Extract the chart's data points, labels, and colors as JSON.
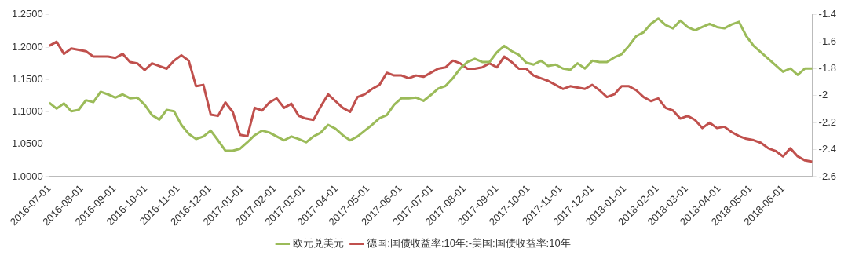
{
  "chart_data": {
    "type": "line",
    "x": [
      "2016-07-01",
      "2016-07-08",
      "2016-07-15",
      "2016-07-22",
      "2016-07-29",
      "2016-08-05",
      "2016-08-12",
      "2016-08-19",
      "2016-08-26",
      "2016-09-02",
      "2016-09-09",
      "2016-09-16",
      "2016-09-23",
      "2016-09-30",
      "2016-10-07",
      "2016-10-14",
      "2016-10-21",
      "2016-10-28",
      "2016-11-04",
      "2016-11-11",
      "2016-11-18",
      "2016-11-25",
      "2016-12-02",
      "2016-12-09",
      "2016-12-16",
      "2016-12-23",
      "2016-12-30",
      "2017-01-06",
      "2017-01-13",
      "2017-01-20",
      "2017-01-27",
      "2017-02-03",
      "2017-02-10",
      "2017-02-17",
      "2017-02-24",
      "2017-03-03",
      "2017-03-10",
      "2017-03-17",
      "2017-03-24",
      "2017-03-31",
      "2017-04-07",
      "2017-04-14",
      "2017-04-21",
      "2017-04-28",
      "2017-05-05",
      "2017-05-12",
      "2017-05-19",
      "2017-05-26",
      "2017-06-02",
      "2017-06-09",
      "2017-06-16",
      "2017-06-23",
      "2017-06-30",
      "2017-07-07",
      "2017-07-14",
      "2017-07-21",
      "2017-07-28",
      "2017-08-04",
      "2017-08-11",
      "2017-08-18",
      "2017-08-25",
      "2017-09-01",
      "2017-09-08",
      "2017-09-15",
      "2017-09-22",
      "2017-09-29",
      "2017-10-06",
      "2017-10-13",
      "2017-10-20",
      "2017-10-27",
      "2017-11-03",
      "2017-11-10",
      "2017-11-17",
      "2017-11-24",
      "2017-12-01",
      "2017-12-08",
      "2017-12-15",
      "2017-12-22",
      "2017-12-29",
      "2018-01-05",
      "2018-01-12",
      "2018-01-19",
      "2018-01-26",
      "2018-02-02",
      "2018-02-09",
      "2018-02-16",
      "2018-02-23",
      "2018-03-02",
      "2018-03-09",
      "2018-03-16",
      "2018-03-23",
      "2018-03-30",
      "2018-04-06",
      "2018-04-13",
      "2018-04-20",
      "2018-04-27",
      "2018-05-04",
      "2018-05-11",
      "2018-05-18",
      "2018-05-25",
      "2018-06-01",
      "2018-06-08",
      "2018-06-15",
      "2018-06-22",
      "2018-06-29"
    ],
    "series": [
      {
        "name": "欧元兑美元",
        "color": "#9bbb59",
        "values": [
          1.114,
          1.105,
          1.113,
          1.101,
          1.103,
          1.118,
          1.115,
          1.131,
          1.127,
          1.122,
          1.127,
          1.121,
          1.122,
          1.111,
          1.095,
          1.088,
          1.103,
          1.101,
          1.08,
          1.066,
          1.058,
          1.062,
          1.071,
          1.056,
          1.04,
          1.04,
          1.043,
          1.053,
          1.064,
          1.071,
          1.068,
          1.062,
          1.056,
          1.062,
          1.058,
          1.053,
          1.062,
          1.068,
          1.08,
          1.074,
          1.064,
          1.056,
          1.062,
          1.071,
          1.08,
          1.09,
          1.095,
          1.111,
          1.121,
          1.121,
          1.122,
          1.117,
          1.126,
          1.136,
          1.14,
          1.152,
          1.167,
          1.177,
          1.182,
          1.177,
          1.177,
          1.192,
          1.202,
          1.194,
          1.188,
          1.176,
          1.173,
          1.179,
          1.171,
          1.173,
          1.167,
          1.165,
          1.175,
          1.167,
          1.179,
          1.177,
          1.177,
          1.184,
          1.189,
          1.202,
          1.217,
          1.223,
          1.236,
          1.244,
          1.234,
          1.229,
          1.241,
          1.231,
          1.226,
          1.231,
          1.236,
          1.231,
          1.229,
          1.235,
          1.239,
          1.217,
          1.202,
          1.192,
          1.182,
          1.172,
          1.162,
          1.167,
          1.157,
          1.167,
          1.167
        ]
      },
      {
        "name": "德国:国债收益率:10年:-美国:国债收益率:10年",
        "color": "#c0504d",
        "axis": "y2",
        "values": [
          -1.63,
          -1.6,
          -1.69,
          -1.65,
          -1.66,
          -1.67,
          -1.71,
          -1.71,
          -1.71,
          -1.72,
          -1.69,
          -1.75,
          -1.76,
          -1.81,
          -1.76,
          -1.78,
          -1.8,
          -1.74,
          -1.7,
          -1.74,
          -1.93,
          -1.92,
          -2.14,
          -2.15,
          -2.05,
          -2.12,
          -2.29,
          -2.3,
          -2.09,
          -2.11,
          -2.05,
          -2.02,
          -2.09,
          -2.06,
          -2.15,
          -2.17,
          -2.18,
          -2.08,
          -1.99,
          -2.04,
          -2.09,
          -2.12,
          -2.01,
          -1.99,
          -1.95,
          -1.92,
          -1.83,
          -1.85,
          -1.85,
          -1.87,
          -1.85,
          -1.86,
          -1.83,
          -1.8,
          -1.79,
          -1.74,
          -1.76,
          -1.8,
          -1.8,
          -1.79,
          -1.76,
          -1.79,
          -1.71,
          -1.75,
          -1.8,
          -1.8,
          -1.85,
          -1.87,
          -1.89,
          -1.92,
          -1.95,
          -1.93,
          -1.94,
          -1.95,
          -1.92,
          -1.96,
          -2.01,
          -1.99,
          -1.93,
          -1.93,
          -1.96,
          -2.01,
          -2.04,
          -2.02,
          -2.09,
          -2.11,
          -2.17,
          -2.15,
          -2.18,
          -2.24,
          -2.2,
          -2.24,
          -2.23,
          -2.27,
          -2.3,
          -2.32,
          -2.33,
          -2.35,
          -2.39,
          -2.41,
          -2.45,
          -2.39,
          -2.45,
          -2.48,
          -2.49
        ]
      }
    ],
    "xlim": [
      "2016-07-01",
      "2018-06-29"
    ],
    "xticks": [
      "2016-07-01",
      "2016-08-01",
      "2016-09-01",
      "2016-10-01",
      "2016-11-01",
      "2016-12-01",
      "2017-01-01",
      "2017-02-01",
      "2017-03-01",
      "2017-04-01",
      "2017-05-01",
      "2017-06-01",
      "2017-07-01",
      "2017-08-01",
      "2017-09-01",
      "2017-10-01",
      "2017-11-01",
      "2017-12-01",
      "2018-01-01",
      "2018-02-01",
      "2018-03-01",
      "2018-04-01",
      "2018-05-01",
      "2018-06-01"
    ],
    "ylim": [
      1.0,
      1.25
    ],
    "yticks": [
      {
        "value": 1.0,
        "label": "1.0000"
      },
      {
        "value": 1.05,
        "label": "1.0500"
      },
      {
        "value": 1.1,
        "label": "1.1000"
      },
      {
        "value": 1.15,
        "label": "1.1500"
      },
      {
        "value": 1.2,
        "label": "1.2000"
      },
      {
        "value": 1.25,
        "label": "1.2500"
      }
    ],
    "y2lim": [
      -2.6,
      -1.4
    ],
    "y2ticks": [
      -2.6,
      -2.4,
      -2.2,
      -2,
      -1.8,
      -1.6,
      -1.4
    ],
    "grid": false,
    "legend": "bottom",
    "marker": "none",
    "line_style": "solid"
  }
}
